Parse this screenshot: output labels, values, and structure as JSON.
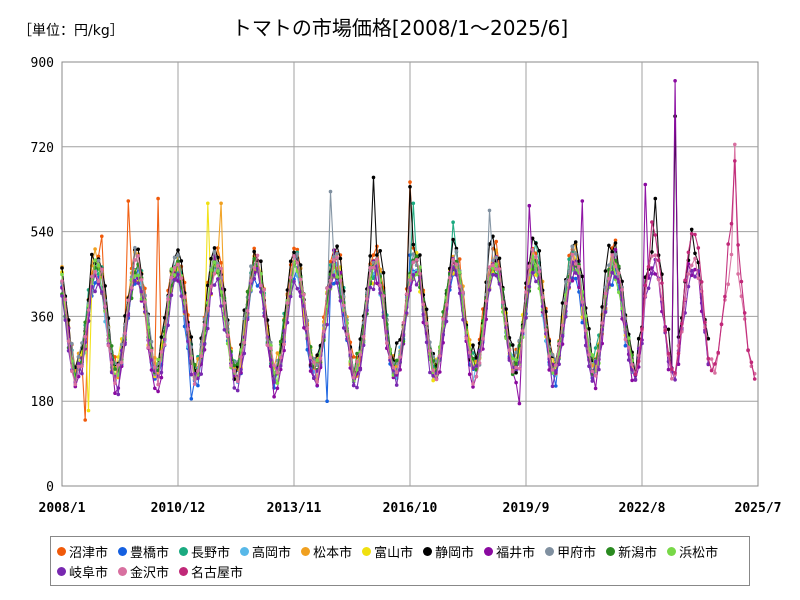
{
  "header": {
    "unit": "［単位：円/kg］",
    "title": "トマトの市場価格[2008/1～2025/6]"
  },
  "chart_data": {
    "type": "line",
    "title": "トマトの市場価格[2008/1～2025/6]",
    "ylabel": "［単位：円/kg］",
    "ylim": [
      0,
      900
    ],
    "yticks": [
      0,
      180,
      360,
      540,
      720,
      900
    ],
    "xlim": [
      "2008-01",
      "2025-07"
    ],
    "xticks": [
      "2008/1",
      "2010/12",
      "2013/11",
      "2016/10",
      "2019/9",
      "2022/8",
      "2025/7"
    ],
    "grid": true,
    "legend_position": "bottom",
    "series": [
      {
        "name": "沼津市",
        "color": "#f05a0a",
        "start": "2008-01",
        "end": "2022-05",
        "base": 365,
        "amp": 120,
        "phase": 0,
        "noise": 22,
        "peaks": [
          [
            "2009-01",
            530
          ],
          [
            "2009-09",
            605
          ],
          [
            "2010-06",
            610
          ],
          [
            "2016-10",
            645
          ],
          [
            "2008-08",
            140
          ]
        ]
      },
      {
        "name": "豊橋市",
        "color": "#1560e0",
        "start": "2008-01",
        "end": "2022-05",
        "base": 335,
        "amp": 110,
        "phase": 1,
        "noise": 18,
        "peaks": [
          [
            "2016-10",
            490
          ],
          [
            "2014-09",
            180
          ],
          [
            "2011-04",
            185
          ]
        ]
      },
      {
        "name": "長野市",
        "color": "#1aaa80",
        "start": "2008-01",
        "end": "2022-05",
        "base": 355,
        "amp": 115,
        "phase": 2,
        "noise": 20,
        "peaks": [
          [
            "2016-11",
            600
          ],
          [
            "2017-11",
            560
          ]
        ]
      },
      {
        "name": "高岡市",
        "color": "#58b8e8",
        "start": "2008-01",
        "end": "2022-05",
        "base": 345,
        "amp": 110,
        "phase": 3,
        "noise": 20,
        "peaks": []
      },
      {
        "name": "松本市",
        "color": "#f0a020",
        "start": "2008-01",
        "end": "2022-05",
        "base": 360,
        "amp": 115,
        "phase": 4,
        "noise": 22,
        "peaks": [
          [
            "2012-01",
            600
          ]
        ]
      },
      {
        "name": "富山市",
        "color": "#f0e010",
        "start": "2008-01",
        "end": "2022-05",
        "base": 350,
        "amp": 110,
        "phase": 5,
        "noise": 22,
        "peaks": [
          [
            "2011-09",
            600
          ],
          [
            "2008-09",
            160
          ]
        ]
      },
      {
        "name": "静岡市",
        "color": "#000000",
        "start": "2008-01",
        "end": "2024-04",
        "base": 375,
        "amp": 125,
        "phase": 6,
        "noise": 24,
        "peaks": [
          [
            "2015-11",
            655
          ],
          [
            "2016-10",
            635
          ],
          [
            "2023-06",
            785
          ],
          [
            "2022-12",
            610
          ]
        ]
      },
      {
        "name": "福井市",
        "color": "#8a0aa0",
        "start": "2008-01",
        "end": "2024-04",
        "base": 335,
        "amp": 120,
        "phase": 7,
        "noise": 24,
        "peaks": [
          [
            "2023-06",
            860
          ],
          [
            "2022-09",
            640
          ],
          [
            "2019-10",
            595
          ],
          [
            "2021-02",
            605
          ],
          [
            "2019-07",
            175
          ]
        ]
      },
      {
        "name": "甲府市",
        "color": "#8090a0",
        "start": "2008-01",
        "end": "2022-05",
        "base": 360,
        "amp": 115,
        "phase": 8,
        "noise": 20,
        "peaks": [
          [
            "2014-10",
            625
          ],
          [
            "2018-10",
            585
          ]
        ]
      },
      {
        "name": "新潟市",
        "color": "#2a8a20",
        "start": "2008-01",
        "end": "2022-05",
        "base": 350,
        "amp": 110,
        "phase": 9,
        "noise": 20,
        "peaks": []
      },
      {
        "name": "浜松市",
        "color": "#78d848",
        "start": "2008-01",
        "end": "2022-05",
        "base": 345,
        "amp": 110,
        "phase": 10,
        "noise": 20,
        "peaks": []
      },
      {
        "name": "岐阜市",
        "color": "#7828b0",
        "start": "2008-01",
        "end": "2024-04",
        "base": 330,
        "amp": 110,
        "phase": 11,
        "noise": 20,
        "peaks": []
      },
      {
        "name": "金沢市",
        "color": "#d870a0",
        "start": "2008-01",
        "end": "2025-06",
        "base": 350,
        "amp": 120,
        "phase": 12,
        "noise": 20,
        "peaks": [
          [
            "2024-12",
            725
          ]
        ]
      },
      {
        "name": "名古屋市",
        "color": "#c02878",
        "start": "2022-06",
        "end": "2025-06",
        "base": 370,
        "amp": 150,
        "phase": 13,
        "noise": 20,
        "peaks": [
          [
            "2024-12",
            690
          ]
        ]
      }
    ]
  }
}
